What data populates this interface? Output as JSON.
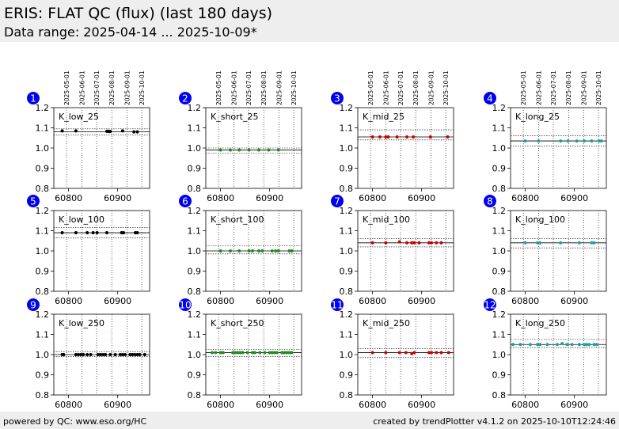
{
  "header": {
    "title": "ERIS: FLAT QC (flux) (last 180 days)",
    "subtitle": "Data range: 2025-04-14 ... 2025-10-09*"
  },
  "footer": {
    "left": "powered by QC: www.eso.org/HC",
    "right": "created by trendPlotter v4.1.2 on 2025-10-10T12:24:46"
  },
  "colors": {
    "marker_low": "#000000",
    "marker_short": "#228b22",
    "marker_mid": "#cc0000",
    "marker_long": "#20a0a0",
    "badge": "#0000ee",
    "header_bg": "#eeeeee"
  },
  "chart_data": [
    {
      "type": "scatter",
      "badge": "1",
      "label": "K_low_25",
      "xlim": [
        60770,
        60965
      ],
      "ylim": [
        0.8,
        1.2
      ],
      "yticks": [
        "0.8",
        "0.9",
        "1.0",
        "1.1",
        "1.2"
      ],
      "xticks": [
        {
          "x": 60800,
          "label": "60800"
        },
        {
          "x": 60900,
          "label": "60900"
        }
      ],
      "date_ticks": [
        {
          "x": 60796,
          "label": "2025-05-01"
        },
        {
          "x": 60827,
          "label": "2025-06-01"
        },
        {
          "x": 60857,
          "label": "2025-07-01"
        },
        {
          "x": 60888,
          "label": "2025-08-01"
        },
        {
          "x": 60919,
          "label": "2025-09-01"
        },
        {
          "x": 60949,
          "label": "2025-10-01"
        }
      ],
      "mean": 1.08,
      "limits": [
        1.065,
        1.095
      ],
      "color": "#000000",
      "x": [
        60787,
        60815,
        60878,
        60880,
        60882,
        60884,
        60885,
        60910,
        60933,
        60940
      ],
      "y": [
        1.085,
        1.085,
        1.083,
        1.083,
        1.082,
        1.082,
        1.082,
        1.085,
        1.08,
        1.08
      ]
    },
    {
      "type": "scatter",
      "badge": "2",
      "label": "K_short_25",
      "xlim": [
        60770,
        60965
      ],
      "ylim": [
        0.8,
        1.2
      ],
      "yticks": [
        "0.8",
        "0.9",
        "1.0",
        "1.1",
        "1.2"
      ],
      "xticks": [
        {
          "x": 60800,
          "label": "60800"
        },
        {
          "x": 60900,
          "label": "60900"
        }
      ],
      "date_ticks": [
        {
          "x": 60796,
          "label": "2025-05-01"
        },
        {
          "x": 60827,
          "label": "2025-06-01"
        },
        {
          "x": 60857,
          "label": "2025-07-01"
        },
        {
          "x": 60888,
          "label": "2025-08-01"
        },
        {
          "x": 60919,
          "label": "2025-09-01"
        },
        {
          "x": 60949,
          "label": "2025-10-01"
        }
      ],
      "mean": 0.99,
      "limits": [
        0.975,
        1.0
      ],
      "color": "#228b22",
      "x": [
        60800,
        60820,
        60838,
        60858,
        60878,
        60898,
        60918
      ],
      "y": [
        0.99,
        0.99,
        0.99,
        0.99,
        0.99,
        0.99,
        0.99
      ]
    },
    {
      "type": "scatter",
      "badge": "3",
      "label": "K_mid_25",
      "xlim": [
        60770,
        60965
      ],
      "ylim": [
        0.8,
        1.2
      ],
      "yticks": [
        "0.8",
        "0.9",
        "1.0",
        "1.1",
        "1.2"
      ],
      "xticks": [
        {
          "x": 60800,
          "label": "60800"
        },
        {
          "x": 60900,
          "label": "60900"
        }
      ],
      "date_ticks": [
        {
          "x": 60796,
          "label": "2025-05-01"
        },
        {
          "x": 60827,
          "label": "2025-06-01"
        },
        {
          "x": 60857,
          "label": "2025-07-01"
        },
        {
          "x": 60888,
          "label": "2025-08-01"
        },
        {
          "x": 60919,
          "label": "2025-09-01"
        },
        {
          "x": 60949,
          "label": "2025-10-01"
        }
      ],
      "mean": 1.055,
      "limits": [
        1.04,
        1.09
      ],
      "color": "#cc0000",
      "x": [
        60800,
        60815,
        60827,
        60832,
        60850,
        60870,
        60883,
        60918,
        60953
      ],
      "y": [
        1.055,
        1.055,
        1.055,
        1.055,
        1.055,
        1.055,
        1.055,
        1.055,
        1.055
      ]
    },
    {
      "type": "scatter",
      "badge": "4",
      "label": "K_long_25",
      "xlim": [
        60770,
        60965
      ],
      "ylim": [
        0.8,
        1.2
      ],
      "yticks": [
        "0.8",
        "0.9",
        "1.0",
        "1.1",
        "1.2"
      ],
      "xticks": [
        {
          "x": 60800,
          "label": "60800"
        },
        {
          "x": 60900,
          "label": "60900"
        }
      ],
      "date_ticks": [
        {
          "x": 60796,
          "label": "2025-05-01"
        },
        {
          "x": 60827,
          "label": "2025-06-01"
        },
        {
          "x": 60857,
          "label": "2025-07-01"
        },
        {
          "x": 60888,
          "label": "2025-08-01"
        },
        {
          "x": 60919,
          "label": "2025-09-01"
        },
        {
          "x": 60949,
          "label": "2025-10-01"
        }
      ],
      "mean": 1.035,
      "limits": [
        1.01,
        1.06
      ],
      "color": "#20a0a0",
      "x": [
        60800,
        60827,
        60872,
        60887,
        60905,
        60920,
        60935,
        60950,
        60955
      ],
      "y": [
        1.035,
        1.035,
        1.035,
        1.035,
        1.035,
        1.035,
        1.035,
        1.035,
        1.035
      ]
    },
    {
      "type": "scatter",
      "badge": "5",
      "label": "K_low_100",
      "xlim": [
        60770,
        60965
      ],
      "ylim": [
        0.8,
        1.2
      ],
      "yticks": [
        "0.8",
        "0.9",
        "1.0",
        "1.1",
        "1.2"
      ],
      "xticks": [
        {
          "x": 60800,
          "label": "60800"
        },
        {
          "x": 60900,
          "label": "60900"
        }
      ],
      "date_ticks": [],
      "mean": 1.09,
      "limits": [
        1.065,
        1.115
      ],
      "color": "#000000",
      "x": [
        60787,
        60815,
        60838,
        60850,
        60858,
        60878,
        60908,
        60912,
        60936,
        60940
      ],
      "y": [
        1.09,
        1.09,
        1.09,
        1.09,
        1.09,
        1.09,
        1.09,
        1.09,
        1.09,
        1.09
      ]
    },
    {
      "type": "scatter",
      "badge": "6",
      "label": "K_short_100",
      "xlim": [
        60770,
        60965
      ],
      "ylim": [
        0.8,
        1.2
      ],
      "yticks": [
        "0.8",
        "0.9",
        "1.0",
        "1.1",
        "1.2"
      ],
      "xticks": [
        {
          "x": 60800,
          "label": "60800"
        },
        {
          "x": 60900,
          "label": "60900"
        }
      ],
      "date_ticks": [],
      "mean": 1.0,
      "limits": [
        0.985,
        1.025
      ],
      "color": "#228b22",
      "x": [
        60800,
        60820,
        60838,
        60858,
        60865,
        60878,
        60885,
        60905,
        60912,
        60918,
        60940,
        60945
      ],
      "y": [
        1.0,
        1.0,
        1.0,
        1.0,
        1.0,
        1.0,
        1.0,
        1.0,
        1.0,
        1.0,
        1.0,
        1.0
      ]
    },
    {
      "type": "scatter",
      "badge": "7",
      "label": "K_mid_100",
      "xlim": [
        60770,
        60965
      ],
      "ylim": [
        0.8,
        1.2
      ],
      "yticks": [
        "0.8",
        "0.9",
        "1.0",
        "1.1",
        "1.2"
      ],
      "xticks": [
        {
          "x": 60800,
          "label": "60800"
        },
        {
          "x": 60900,
          "label": "60900"
        }
      ],
      "date_ticks": [],
      "mean": 1.04,
      "limits": [
        1.02,
        1.06
      ],
      "color": "#cc0000",
      "x": [
        60800,
        60827,
        60855,
        60870,
        60880,
        60885,
        60895,
        60915,
        60920,
        60930,
        60940
      ],
      "y": [
        1.04,
        1.04,
        1.045,
        1.04,
        1.04,
        1.04,
        1.04,
        1.04,
        1.04,
        1.04,
        1.04
      ]
    },
    {
      "type": "scatter",
      "badge": "8",
      "label": "K_long_100",
      "xlim": [
        60770,
        60965
      ],
      "ylim": [
        0.8,
        1.2
      ],
      "yticks": [
        "0.8",
        "0.9",
        "1.0",
        "1.1",
        "1.2"
      ],
      "xticks": [
        {
          "x": 60800,
          "label": "60800"
        },
        {
          "x": 60900,
          "label": "60900"
        }
      ],
      "date_ticks": [],
      "mean": 1.04,
      "limits": [
        1.015,
        1.06
      ],
      "color": "#20a0a0",
      "x": [
        60800,
        60825,
        60830,
        60872,
        60910,
        60935,
        60940
      ],
      "y": [
        1.04,
        1.04,
        1.04,
        1.04,
        1.04,
        1.04,
        1.04
      ]
    },
    {
      "type": "scatter",
      "badge": "9",
      "label": "K_low_250",
      "xlim": [
        60770,
        60965
      ],
      "ylim": [
        0.8,
        1.2
      ],
      "yticks": [
        "0.8",
        "0.9",
        "1.0",
        "1.1",
        "1.2"
      ],
      "xticks": [
        {
          "x": 60800,
          "label": "60800"
        },
        {
          "x": 60900,
          "label": "60900"
        }
      ],
      "date_ticks": [],
      "mean": 1.0,
      "limits": [
        0.99,
        1.015
      ],
      "color": "#000000",
      "x": [
        60787,
        60790,
        60815,
        60820,
        60825,
        60830,
        60838,
        60845,
        60860,
        60865,
        60870,
        60875,
        60885,
        60895,
        60905,
        60910,
        60915,
        60925,
        60930,
        60935,
        60940,
        60945,
        60955
      ],
      "y": [
        1.0,
        1.0,
        1.0,
        1.0,
        1.0,
        1.0,
        1.0,
        1.0,
        1.0,
        1.0,
        1.0,
        1.0,
        1.0,
        1.0,
        1.0,
        1.0,
        1.0,
        1.0,
        1.0,
        1.0,
        1.0,
        1.0,
        1.0
      ]
    },
    {
      "type": "scatter",
      "badge": "10",
      "label": "K_short_250",
      "xlim": [
        60770,
        60965
      ],
      "ylim": [
        0.8,
        1.2
      ],
      "yticks": [
        "0.8",
        "0.9",
        "1.0",
        "1.1",
        "1.2"
      ],
      "xticks": [
        {
          "x": 60800,
          "label": "60800"
        },
        {
          "x": 60900,
          "label": "60900"
        }
      ],
      "date_ticks": [],
      "mean": 1.01,
      "limits": [
        0.99,
        1.025
      ],
      "color": "#228b22",
      "x": [
        60783,
        60790,
        60800,
        60805,
        60825,
        60830,
        60835,
        60840,
        60845,
        60855,
        60865,
        60870,
        60880,
        60890,
        60900,
        60905,
        60910,
        60915,
        60925,
        60930,
        60935,
        60940,
        60945
      ],
      "y": [
        1.01,
        1.01,
        1.01,
        1.01,
        1.01,
        1.01,
        1.01,
        1.01,
        1.01,
        1.01,
        1.01,
        1.01,
        1.01,
        1.01,
        1.01,
        1.01,
        1.01,
        1.01,
        1.01,
        1.01,
        1.01,
        1.01,
        1.01
      ]
    },
    {
      "type": "scatter",
      "badge": "11",
      "label": "K_mid_250",
      "xlim": [
        60770,
        60965
      ],
      "ylim": [
        0.8,
        1.2
      ],
      "yticks": [
        "0.8",
        "0.9",
        "1.0",
        "1.1",
        "1.2"
      ],
      "xticks": [
        {
          "x": 60800,
          "label": "60800"
        },
        {
          "x": 60900,
          "label": "60900"
        }
      ],
      "date_ticks": [],
      "mean": 1.01,
      "limits": [
        0.985,
        1.03
      ],
      "color": "#cc0000",
      "x": [
        60800,
        60827,
        60855,
        60868,
        60880,
        60885,
        60915,
        60920,
        60930,
        60940,
        60955
      ],
      "y": [
        1.01,
        1.01,
        1.01,
        1.01,
        1.005,
        1.01,
        1.01,
        1.01,
        1.01,
        1.01,
        1.01
      ]
    },
    {
      "type": "scatter",
      "badge": "12",
      "label": "K_long_250",
      "xlim": [
        60770,
        60965
      ],
      "ylim": [
        0.8,
        1.2
      ],
      "yticks": [
        "0.8",
        "0.9",
        "1.0",
        "1.1",
        "1.2"
      ],
      "xticks": [
        {
          "x": 60800,
          "label": "60800"
        },
        {
          "x": 60900,
          "label": "60900"
        }
      ],
      "date_ticks": [],
      "mean": 1.05,
      "limits": [
        1.035,
        1.075
      ],
      "color": "#20a0a0",
      "x": [
        60775,
        60790,
        60810,
        60825,
        60830,
        60845,
        60865,
        60875,
        60885,
        60895,
        60910,
        60920,
        60925,
        60930,
        60940,
        60945
      ],
      "y": [
        1.05,
        1.05,
        1.05,
        1.05,
        1.05,
        1.05,
        1.05,
        1.055,
        1.05,
        1.05,
        1.05,
        1.05,
        1.05,
        1.05,
        1.05,
        1.05
      ]
    }
  ]
}
